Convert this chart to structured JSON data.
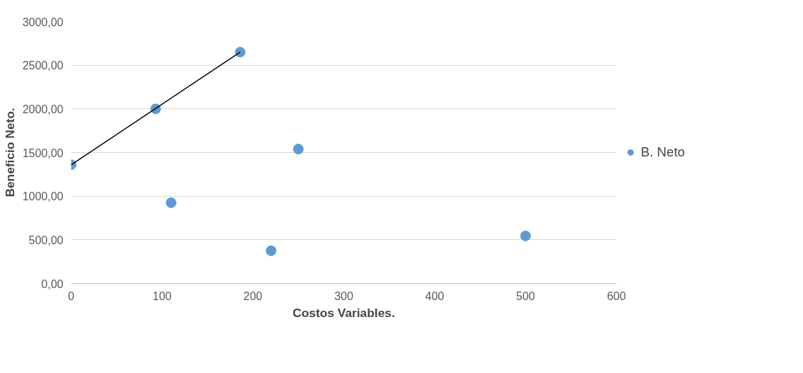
{
  "chart_data": {
    "type": "scatter",
    "xlabel": "Costos Variables.",
    "ylabel": "Beneficio Neto.",
    "series": [
      {
        "name": "B. Neto",
        "marker": "circle",
        "color": "#5b9bd5",
        "x": [
          0,
          93,
          186,
          110,
          250,
          220,
          500
        ],
        "values": [
          1360,
          2000,
          2650,
          925,
          1540,
          375,
          545
        ]
      },
      {
        "type": "line",
        "color": "#000000",
        "x": [
          0,
          186
        ],
        "values": [
          1360,
          2650
        ]
      }
    ],
    "xlim": [
      0,
      600
    ],
    "xticks": [
      0,
      100,
      200,
      300,
      400,
      500,
      600
    ],
    "ylim": [
      0,
      3000
    ],
    "yticks": [
      {
        "value": 0,
        "label": "0,00"
      },
      {
        "value": 500,
        "label": "500,00"
      },
      {
        "value": 1000,
        "label": "1000,00"
      },
      {
        "value": 1500,
        "label": "1500,00"
      },
      {
        "value": 2000,
        "label": "2000,00"
      },
      {
        "value": 2500,
        "label": "2500,00"
      },
      {
        "value": 3000,
        "label": "3000,00"
      }
    ],
    "grid": "y",
    "legend": "right",
    "line_style": "solid"
  }
}
